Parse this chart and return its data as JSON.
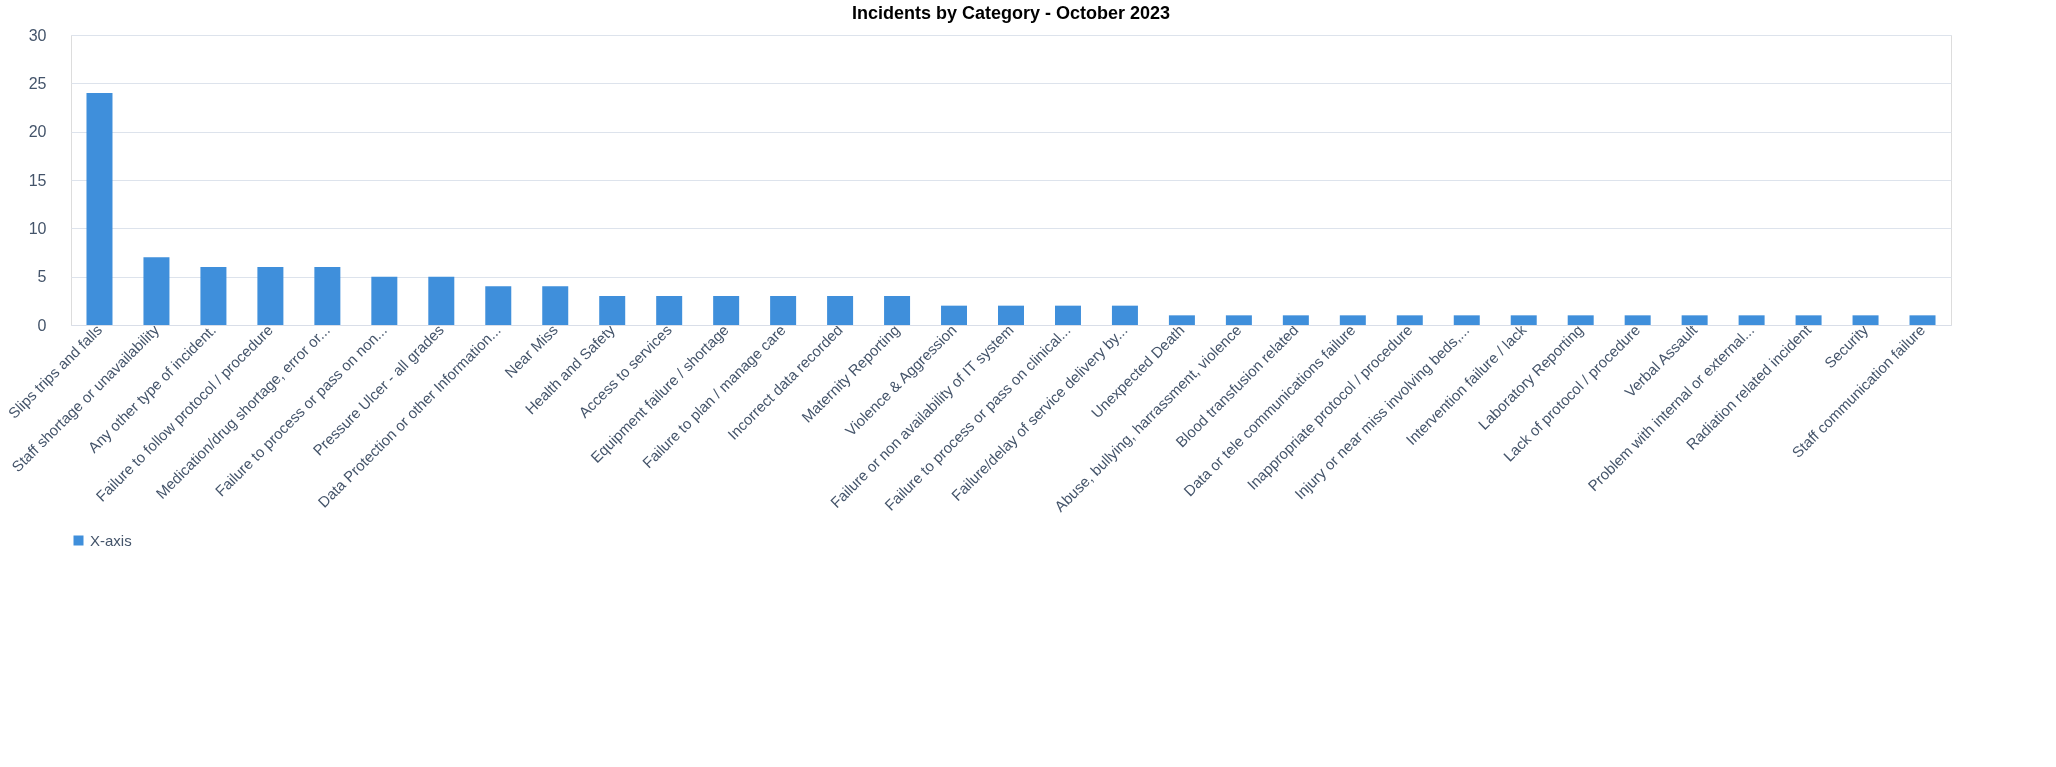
{
  "chart_data": {
    "type": "bar",
    "title": "Incidents by Category - October 2023",
    "categories": [
      "Slips trips and falls",
      "Staff shortage or unavailability",
      "Any other type of incident.",
      "Failure to follow protocol / procedure",
      "Medication/drug shortage, error or...",
      "Failure to process or pass on non...",
      "Pressure Ulcer - all grades",
      "Data Protection or other Information...",
      "Near Miss",
      "Health and Safety",
      "Access to services",
      "Equipment failure / shortage",
      "Failure to plan / manage care",
      "Incorrect data recorded",
      "Maternity Reporting",
      "Violence & Aggression",
      "Failure or non availability of IT system",
      "Failure to process or pass on clinical...",
      "Failure/delay of service delivery by...",
      "Unexpected Death",
      "Abuse, bullying, harrassment, violence",
      "Blood transfusion related",
      "Data or tele communications failure",
      "Inappropriate protocol / procedure",
      "Injury or near miss involving beds,...",
      "Intervention failure / lack",
      "Laboratory Reporting",
      "Lack of protocol / procedure",
      "Verbal Assault",
      "Problem with internal or external...",
      "Radiation related incident",
      "Security",
      "Staff communication failure"
    ],
    "series": [
      {
        "name": "X-axis",
        "color": "#3f8fdb",
        "values": [
          24,
          7,
          6,
          6,
          6,
          5,
          5,
          4,
          4,
          3,
          3,
          3,
          3,
          3,
          3,
          2,
          2,
          2,
          2,
          1,
          1,
          1,
          1,
          1,
          1,
          1,
          1,
          1,
          1,
          1,
          1,
          1,
          1
        ]
      }
    ],
    "ylim": [
      0,
      30
    ],
    "yticks": [
      0,
      5,
      10,
      15,
      20,
      25,
      30
    ],
    "grid": "y",
    "legend": "bottom"
  }
}
